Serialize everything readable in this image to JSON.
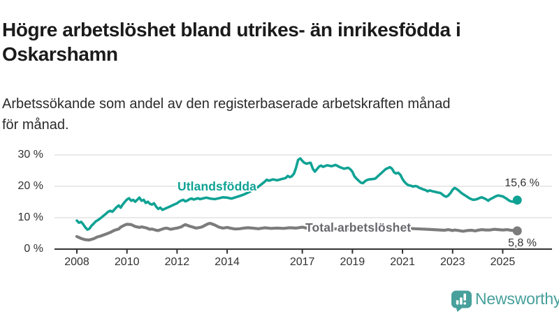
{
  "header": {
    "title_lines": [
      "Högre arbetslöshet bland utrikes- än inrikesfödda i",
      "Oskarshamn"
    ],
    "subtitle_lines": [
      "Arbetssökande som andel av den registerbaserade arbetskraften månad",
      "för månad."
    ]
  },
  "chart_data": {
    "type": "line",
    "title": "Högre arbetslöshet bland utrikes- än inrikesfödda i Oskarshamn",
    "subtitle": "Arbetssökande som andel av den registerbaserade arbetskraften månad för månad.",
    "grid": true,
    "grid_color": "#dcdcdc",
    "axis_color": "#333333",
    "x_axis": {
      "ticks": [
        2008,
        2010,
        2012,
        2014,
        2017,
        2019,
        2021,
        2023,
        2025
      ],
      "labels": [
        "2008",
        "2010",
        "2012",
        "2014",
        "2017",
        "2019",
        "2021",
        "2023",
        "2025"
      ],
      "range": [
        2007.1,
        2027.0
      ]
    },
    "y_axis": {
      "ticks": [
        0,
        10,
        20,
        30
      ],
      "labels": [
        "0 %",
        "10 %",
        "20 %",
        "30 %"
      ],
      "range": [
        0,
        30
      ]
    },
    "series": [
      {
        "name": "Utlandsfödda",
        "color": "#0fa294",
        "end_label": "15,6 %",
        "end_value": 15.6,
        "points": [
          [
            2008.0,
            9.1
          ],
          [
            2008.08,
            8.4
          ],
          [
            2008.17,
            8.7
          ],
          [
            2008.25,
            7.9
          ],
          [
            2008.33,
            7.0
          ],
          [
            2008.42,
            6.2
          ],
          [
            2008.5,
            6.5
          ],
          [
            2008.58,
            7.4
          ],
          [
            2008.67,
            8.1
          ],
          [
            2008.75,
            8.8
          ],
          [
            2008.83,
            9.2
          ],
          [
            2008.92,
            9.7
          ],
          [
            2009.0,
            10.2
          ],
          [
            2009.17,
            11.3
          ],
          [
            2009.25,
            11.9
          ],
          [
            2009.33,
            12.2
          ],
          [
            2009.42,
            11.9
          ],
          [
            2009.5,
            12.6
          ],
          [
            2009.58,
            13.3
          ],
          [
            2009.67,
            13.9
          ],
          [
            2009.75,
            13.2
          ],
          [
            2009.83,
            14.2
          ],
          [
            2009.92,
            15.1
          ],
          [
            2010.0,
            15.8
          ],
          [
            2010.08,
            16.2
          ],
          [
            2010.17,
            15.4
          ],
          [
            2010.25,
            15.7
          ],
          [
            2010.33,
            15.1
          ],
          [
            2010.42,
            15.8
          ],
          [
            2010.5,
            16.4
          ],
          [
            2010.58,
            15.4
          ],
          [
            2010.67,
            15.7
          ],
          [
            2010.75,
            14.7
          ],
          [
            2010.83,
            15.1
          ],
          [
            2010.92,
            14.4
          ],
          [
            2011.0,
            14.2
          ],
          [
            2011.08,
            14.6
          ],
          [
            2011.17,
            13.5
          ],
          [
            2011.25,
            12.8
          ],
          [
            2011.33,
            13.2
          ],
          [
            2011.42,
            12.5
          ],
          [
            2011.5,
            12.8
          ],
          [
            2011.58,
            13.1
          ],
          [
            2011.67,
            13.4
          ],
          [
            2011.75,
            13.7
          ],
          [
            2011.83,
            14.0
          ],
          [
            2011.92,
            14.3
          ],
          [
            2012.0,
            14.6
          ],
          [
            2012.08,
            15.1
          ],
          [
            2012.17,
            15.5
          ],
          [
            2012.25,
            15.7
          ],
          [
            2012.33,
            15.2
          ],
          [
            2012.42,
            15.5
          ],
          [
            2012.5,
            15.9
          ],
          [
            2012.58,
            16.1
          ],
          [
            2012.67,
            15.8
          ],
          [
            2012.75,
            16.0
          ],
          [
            2012.83,
            16.2
          ],
          [
            2012.92,
            15.9
          ],
          [
            2013.0,
            16.1
          ],
          [
            2013.17,
            16.4
          ],
          [
            2013.33,
            16.1
          ],
          [
            2013.5,
            15.9
          ],
          [
            2013.67,
            16.2
          ],
          [
            2013.83,
            16.5
          ],
          [
            2014.0,
            16.4
          ],
          [
            2014.17,
            16.1
          ],
          [
            2014.33,
            16.5
          ],
          [
            2014.5,
            16.9
          ],
          [
            2014.67,
            17.4
          ],
          [
            2014.83,
            18.0
          ],
          [
            2015.0,
            18.7
          ],
          [
            2015.17,
            19.4
          ],
          [
            2015.33,
            20.4
          ],
          [
            2015.5,
            21.5
          ],
          [
            2015.58,
            22.1
          ],
          [
            2015.67,
            21.8
          ],
          [
            2015.83,
            22.2
          ],
          [
            2016.0,
            21.9
          ],
          [
            2016.17,
            22.3
          ],
          [
            2016.33,
            22.6
          ],
          [
            2016.42,
            23.3
          ],
          [
            2016.5,
            22.9
          ],
          [
            2016.58,
            23.2
          ],
          [
            2016.67,
            24.1
          ],
          [
            2016.75,
            25.9
          ],
          [
            2016.83,
            28.4
          ],
          [
            2016.92,
            28.9
          ],
          [
            2017.0,
            28.1
          ],
          [
            2017.08,
            27.5
          ],
          [
            2017.17,
            27.2
          ],
          [
            2017.25,
            27.4
          ],
          [
            2017.33,
            27.5
          ],
          [
            2017.42,
            25.6
          ],
          [
            2017.5,
            24.7
          ],
          [
            2017.58,
            25.4
          ],
          [
            2017.67,
            26.3
          ],
          [
            2017.75,
            26.6
          ],
          [
            2017.83,
            26.2
          ],
          [
            2017.92,
            26.5
          ],
          [
            2018.0,
            26.7
          ],
          [
            2018.17,
            26.4
          ],
          [
            2018.33,
            26.8
          ],
          [
            2018.5,
            26.1
          ],
          [
            2018.67,
            25.6
          ],
          [
            2018.83,
            25.9
          ],
          [
            2018.92,
            25.4
          ],
          [
            2019.0,
            24.6
          ],
          [
            2019.08,
            23.2
          ],
          [
            2019.17,
            22.4
          ],
          [
            2019.25,
            21.8
          ],
          [
            2019.33,
            21.2
          ],
          [
            2019.42,
            21.0
          ],
          [
            2019.5,
            21.6
          ],
          [
            2019.58,
            22.0
          ],
          [
            2019.67,
            22.2
          ],
          [
            2019.83,
            22.3
          ],
          [
            2019.92,
            22.5
          ],
          [
            2020.0,
            23.1
          ],
          [
            2020.17,
            24.3
          ],
          [
            2020.33,
            25.5
          ],
          [
            2020.5,
            26.1
          ],
          [
            2020.58,
            25.6
          ],
          [
            2020.67,
            24.4
          ],
          [
            2020.75,
            24.1
          ],
          [
            2020.83,
            24.3
          ],
          [
            2020.92,
            23.6
          ],
          [
            2021.0,
            22.3
          ],
          [
            2021.08,
            21.4
          ],
          [
            2021.17,
            20.7
          ],
          [
            2021.25,
            20.3
          ],
          [
            2021.33,
            20.2
          ],
          [
            2021.42,
            19.9
          ],
          [
            2021.5,
            20.1
          ],
          [
            2021.58,
            20.0
          ],
          [
            2021.67,
            19.5
          ],
          [
            2021.75,
            19.3
          ],
          [
            2021.83,
            19.0
          ],
          [
            2021.92,
            18.8
          ],
          [
            2022.0,
            18.4
          ],
          [
            2022.08,
            18.7
          ],
          [
            2022.17,
            18.5
          ],
          [
            2022.25,
            18.3
          ],
          [
            2022.33,
            18.2
          ],
          [
            2022.42,
            18.0
          ],
          [
            2022.5,
            17.9
          ],
          [
            2022.58,
            17.5
          ],
          [
            2022.67,
            16.9
          ],
          [
            2022.75,
            16.7
          ],
          [
            2022.83,
            17.1
          ],
          [
            2022.92,
            17.9
          ],
          [
            2023.0,
            18.9
          ],
          [
            2023.08,
            19.5
          ],
          [
            2023.17,
            19.1
          ],
          [
            2023.25,
            18.6
          ],
          [
            2023.33,
            18.0
          ],
          [
            2023.42,
            17.5
          ],
          [
            2023.5,
            17.1
          ],
          [
            2023.58,
            16.7
          ],
          [
            2023.67,
            16.2
          ],
          [
            2023.75,
            15.9
          ],
          [
            2023.83,
            15.7
          ],
          [
            2023.92,
            15.8
          ],
          [
            2024.0,
            16.0
          ],
          [
            2024.08,
            16.3
          ],
          [
            2024.17,
            16.5
          ],
          [
            2024.25,
            16.2
          ],
          [
            2024.33,
            15.9
          ],
          [
            2024.42,
            15.4
          ],
          [
            2024.5,
            15.9
          ],
          [
            2024.58,
            16.2
          ],
          [
            2024.67,
            16.6
          ],
          [
            2024.75,
            16.9
          ],
          [
            2024.83,
            17.1
          ],
          [
            2024.92,
            16.9
          ],
          [
            2025.0,
            16.8
          ],
          [
            2025.08,
            16.4
          ],
          [
            2025.17,
            16.0
          ],
          [
            2025.25,
            15.5
          ],
          [
            2025.33,
            15.2
          ],
          [
            2025.42,
            15.1
          ],
          [
            2025.5,
            15.3
          ],
          [
            2025.58,
            15.6
          ]
        ]
      },
      {
        "name": "Total arbetslöshet",
        "color": "#7c7c7c",
        "label_color": "#68686f",
        "end_label": "5,8 %",
        "end_value": 5.8,
        "points": [
          [
            2008.0,
            4.0
          ],
          [
            2008.17,
            3.4
          ],
          [
            2008.33,
            3.0
          ],
          [
            2008.5,
            2.9
          ],
          [
            2008.67,
            3.3
          ],
          [
            2008.83,
            3.9
          ],
          [
            2008.92,
            4.1
          ],
          [
            2009.0,
            4.3
          ],
          [
            2009.17,
            4.8
          ],
          [
            2009.33,
            5.3
          ],
          [
            2009.5,
            6.0
          ],
          [
            2009.67,
            6.4
          ],
          [
            2009.75,
            7.0
          ],
          [
            2009.92,
            7.7
          ],
          [
            2010.0,
            7.9
          ],
          [
            2010.17,
            7.8
          ],
          [
            2010.33,
            7.2
          ],
          [
            2010.5,
            6.9
          ],
          [
            2010.58,
            7.1
          ],
          [
            2010.75,
            6.8
          ],
          [
            2010.92,
            6.3
          ],
          [
            2011.0,
            6.4
          ],
          [
            2011.17,
            6.0
          ],
          [
            2011.25,
            5.9
          ],
          [
            2011.42,
            6.4
          ],
          [
            2011.5,
            6.6
          ],
          [
            2011.58,
            6.7
          ],
          [
            2011.75,
            6.3
          ],
          [
            2011.92,
            6.6
          ],
          [
            2012.0,
            6.7
          ],
          [
            2012.17,
            7.1
          ],
          [
            2012.25,
            7.5
          ],
          [
            2012.33,
            7.8
          ],
          [
            2012.5,
            7.3
          ],
          [
            2012.67,
            6.9
          ],
          [
            2012.75,
            6.7
          ],
          [
            2012.92,
            6.9
          ],
          [
            2013.0,
            7.1
          ],
          [
            2013.17,
            7.8
          ],
          [
            2013.25,
            8.1
          ],
          [
            2013.33,
            8.2
          ],
          [
            2013.5,
            7.7
          ],
          [
            2013.67,
            7.0
          ],
          [
            2013.83,
            6.7
          ],
          [
            2014.0,
            6.9
          ],
          [
            2014.17,
            6.6
          ],
          [
            2014.33,
            6.4
          ],
          [
            2014.5,
            6.5
          ],
          [
            2014.67,
            6.7
          ],
          [
            2014.83,
            6.8
          ],
          [
            2015.0,
            6.7
          ],
          [
            2015.25,
            6.5
          ],
          [
            2015.5,
            6.8
          ],
          [
            2015.75,
            6.6
          ],
          [
            2016.0,
            6.7
          ],
          [
            2016.25,
            6.6
          ],
          [
            2016.5,
            6.8
          ],
          [
            2016.75,
            6.7
          ],
          [
            2017.0,
            7.0
          ],
          [
            2017.17,
            6.7
          ],
          [
            2017.33,
            6.6
          ],
          [
            2017.5,
            6.5
          ],
          [
            2017.75,
            6.6
          ],
          [
            2018.0,
            6.5
          ],
          [
            2018.25,
            6.4
          ],
          [
            2018.5,
            6.5
          ],
          [
            2018.75,
            6.4
          ],
          [
            2019.0,
            6.3
          ],
          [
            2019.25,
            6.2
          ],
          [
            2019.5,
            6.4
          ],
          [
            2019.75,
            6.5
          ],
          [
            2020.0,
            6.6
          ],
          [
            2020.25,
            7.0
          ],
          [
            2020.5,
            7.2
          ],
          [
            2020.75,
            7.0
          ],
          [
            2021.0,
            6.8
          ],
          [
            2021.25,
            6.6
          ],
          [
            2021.5,
            6.5
          ],
          [
            2021.75,
            6.4
          ],
          [
            2022.0,
            6.3
          ],
          [
            2022.25,
            6.2
          ],
          [
            2022.5,
            6.1
          ],
          [
            2022.67,
            6.0
          ],
          [
            2022.83,
            6.2
          ],
          [
            2023.0,
            5.9
          ],
          [
            2023.08,
            6.1
          ],
          [
            2023.25,
            5.9
          ],
          [
            2023.42,
            5.7
          ],
          [
            2023.58,
            5.9
          ],
          [
            2023.75,
            6.0
          ],
          [
            2023.92,
            5.8
          ],
          [
            2024.0,
            6.0
          ],
          [
            2024.17,
            6.2
          ],
          [
            2024.33,
            6.1
          ],
          [
            2024.5,
            6.1
          ],
          [
            2024.67,
            6.3
          ],
          [
            2024.83,
            6.2
          ],
          [
            2025.0,
            6.1
          ],
          [
            2025.17,
            6.2
          ],
          [
            2025.33,
            6.0
          ],
          [
            2025.42,
            5.9
          ],
          [
            2025.5,
            6.0
          ],
          [
            2025.58,
            5.8
          ]
        ]
      }
    ]
  },
  "footer": {
    "brand": "Newsworthy",
    "brand_color": "#47a09b"
  }
}
